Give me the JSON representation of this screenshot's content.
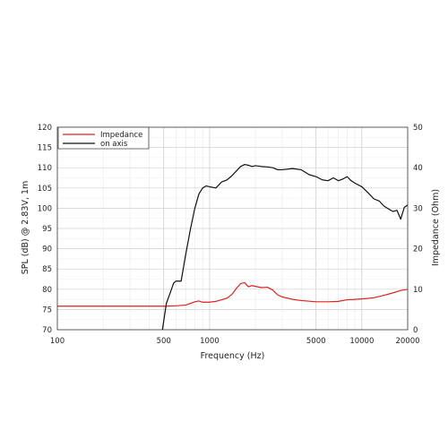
{
  "chart_data": {
    "type": "line",
    "xlabel": "Frequency (Hz)",
    "ylabel_left": "SPL (dB) @ 2.83V, 1m",
    "ylabel_right": "Impedance (Ohm)",
    "x_scale": "log",
    "xlim": [
      100,
      20000
    ],
    "ylim_left": [
      70,
      120
    ],
    "ylim_right": [
      0,
      50
    ],
    "x_tick_values": [
      100,
      500,
      1000,
      5000,
      10000,
      20000
    ],
    "x_tick_labels": [
      "100",
      "500",
      "1000",
      "5000",
      "10000",
      "20000"
    ],
    "y_left_ticks": [
      "70",
      "75",
      "80",
      "85",
      "90",
      "95",
      "100",
      "105",
      "110",
      "115",
      "120"
    ],
    "y_right_ticks": [
      "0",
      "10",
      "20",
      "30",
      "40",
      "50"
    ],
    "grid": true,
    "legend_position": "top-left",
    "series": [
      {
        "name": "Impedance",
        "axis": "right",
        "color": "#e02020",
        "x": [
          100,
          200,
          300,
          400,
          500,
          600,
          700,
          800,
          850,
          900,
          1000,
          1100,
          1200,
          1300,
          1400,
          1500,
          1600,
          1700,
          1800,
          1900,
          2000,
          2200,
          2400,
          2600,
          2800,
          3000,
          3500,
          4000,
          5000,
          6000,
          7000,
          8000,
          9000,
          10000,
          12000,
          14000,
          16000,
          18000,
          20000
        ],
        "y": [
          5.8,
          5.8,
          5.8,
          5.8,
          5.8,
          5.9,
          6.1,
          6.9,
          7.1,
          6.8,
          6.8,
          7.0,
          7.4,
          7.8,
          8.7,
          10.2,
          11.4,
          11.6,
          10.6,
          10.9,
          10.7,
          10.4,
          10.5,
          9.8,
          8.6,
          8.1,
          7.5,
          7.2,
          6.9,
          6.9,
          7.0,
          7.4,
          7.5,
          7.6,
          7.9,
          8.5,
          9.1,
          9.7,
          10.0
        ]
      },
      {
        "name": "on axis",
        "axis": "left",
        "color": "#111111",
        "x": [
          490,
          520,
          550,
          580,
          600,
          650,
          700,
          750,
          800,
          850,
          900,
          950,
          1000,
          1100,
          1200,
          1300,
          1400,
          1500,
          1600,
          1700,
          1800,
          1900,
          2000,
          2200,
          2400,
          2600,
          2800,
          3000,
          3500,
          4000,
          4500,
          5000,
          5500,
          6000,
          6500,
          7000,
          7500,
          8000,
          8500,
          9000,
          10000,
          11000,
          12000,
          13000,
          14000,
          15000,
          16000,
          17000,
          18000,
          19000,
          20000
        ],
        "y": [
          70,
          76.5,
          79,
          81.5,
          82,
          82,
          89,
          95,
          100,
          103.5,
          105,
          105.5,
          105.3,
          105,
          106.5,
          107,
          108,
          109.2,
          110.3,
          110.8,
          110.6,
          110.3,
          110.5,
          110.3,
          110.2,
          110,
          109.5,
          109.5,
          109.8,
          109.5,
          108.3,
          107.8,
          107,
          106.8,
          107.5,
          106.8,
          107.2,
          107.8,
          106.8,
          106.2,
          105.3,
          103.8,
          102.3,
          101.8,
          100.5,
          99.8,
          99.2,
          99.5,
          97.3,
          100.2,
          100.8
        ]
      }
    ]
  }
}
